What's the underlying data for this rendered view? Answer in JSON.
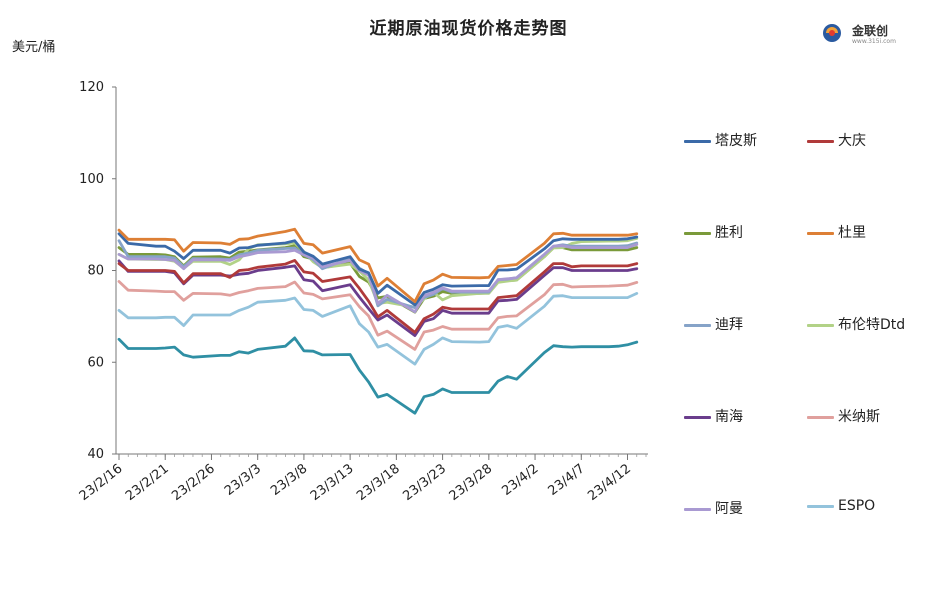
{
  "chart_data": {
    "type": "line",
    "title": "近期原油现货价格走势图",
    "ylabel": "美元/桶",
    "ylim": [
      40,
      120
    ],
    "yticks": [
      40,
      60,
      80,
      100,
      120
    ],
    "xtick_labels": [
      "23/2/16",
      "23/2/21",
      "23/2/26",
      "23/3/3",
      "23/3/8",
      "23/3/13",
      "23/3/18",
      "23/3/23",
      "23/3/28",
      "23/4/2",
      "23/4/7",
      "23/4/12"
    ],
    "x": [
      "2023-02-16",
      "2023-02-17",
      "2023-02-20",
      "2023-02-21",
      "2023-02-22",
      "2023-02-23",
      "2023-02-24",
      "2023-02-27",
      "2023-02-28",
      "2023-03-01",
      "2023-03-02",
      "2023-03-03",
      "2023-03-06",
      "2023-03-07",
      "2023-03-08",
      "2023-03-09",
      "2023-03-10",
      "2023-03-13",
      "2023-03-14",
      "2023-03-15",
      "2023-03-16",
      "2023-03-17",
      "2023-03-20",
      "2023-03-21",
      "2023-03-22",
      "2023-03-23",
      "2023-03-24",
      "2023-03-27",
      "2023-03-28",
      "2023-03-29",
      "2023-03-30",
      "2023-03-31",
      "2023-04-03",
      "2023-04-04",
      "2023-04-05",
      "2023-04-06",
      "2023-04-07",
      "2023-04-10",
      "2023-04-11",
      "2023-04-12",
      "2023-04-13"
    ],
    "series": [
      {
        "name": "塔皮斯",
        "color": "#3b6aa8",
        "values": [
          88.0,
          85.9,
          85.3,
          85.3,
          84.2,
          82.6,
          84.4,
          84.4,
          83.8,
          84.9,
          85.0,
          85.5,
          86.0,
          86.5,
          84.0,
          83.1,
          81.4,
          83.0,
          80.3,
          79.5,
          75.0,
          76.8,
          72.5,
          75.2,
          75.9,
          76.9,
          76.6,
          76.7,
          76.7,
          80.1,
          80.1,
          80.3,
          84.7,
          86.5,
          86.9,
          86.8,
          86.8,
          86.8,
          86.8,
          86.9,
          87.3
        ]
      },
      {
        "name": "大庆",
        "color": "#b03a3a",
        "values": [
          81.5,
          80.0,
          80.0,
          80.0,
          79.8,
          77.3,
          79.3,
          79.3,
          78.5,
          80.0,
          80.2,
          80.7,
          81.4,
          82.2,
          79.7,
          79.4,
          77.6,
          78.6,
          76.1,
          73.3,
          69.9,
          71.3,
          66.5,
          69.5,
          70.5,
          72.0,
          71.6,
          71.6,
          71.6,
          74.1,
          74.3,
          74.5,
          79.7,
          81.5,
          81.5,
          80.8,
          81.0,
          81.0,
          81.0,
          81.0,
          81.5
        ]
      },
      {
        "name": "胜利",
        "color": "#7a9a3a",
        "values": [
          85.0,
          83.5,
          83.5,
          83.4,
          83.0,
          81.0,
          82.9,
          83.0,
          82.7,
          84.0,
          84.2,
          84.5,
          85.0,
          85.4,
          83.0,
          82.5,
          80.6,
          81.6,
          78.7,
          77.5,
          74.0,
          74.4,
          70.9,
          73.9,
          74.4,
          75.4,
          75.0,
          75.0,
          75.1,
          77.7,
          77.8,
          77.9,
          83.0,
          85.0,
          85.0,
          84.5,
          84.5,
          84.5,
          84.5,
          84.5,
          85.0
        ]
      },
      {
        "name": "杜里",
        "color": "#dd7f35",
        "values": [
          88.8,
          86.8,
          86.8,
          86.8,
          86.7,
          84.2,
          86.1,
          86.0,
          85.7,
          86.8,
          86.9,
          87.5,
          88.5,
          89.0,
          85.9,
          85.6,
          83.8,
          85.2,
          82.3,
          81.4,
          76.6,
          78.3,
          73.2,
          77.1,
          77.9,
          79.2,
          78.5,
          78.4,
          78.5,
          80.9,
          81.1,
          81.3,
          85.9,
          88.0,
          88.1,
          87.7,
          87.7,
          87.7,
          87.7,
          87.7,
          88.0
        ]
      },
      {
        "name": "迪拜",
        "color": "#86a3c8",
        "values": [
          86.5,
          83.0,
          83.0,
          83.0,
          82.7,
          80.8,
          82.6,
          82.5,
          82.4,
          83.4,
          83.8,
          84.4,
          84.8,
          84.9,
          83.4,
          82.4,
          80.4,
          82.7,
          80.5,
          79.3,
          72.3,
          73.7,
          71.9,
          74.1,
          74.8,
          76.1,
          75.3,
          75.3,
          75.3,
          78.0,
          78.1,
          78.4,
          83.5,
          85.3,
          85.6,
          85.3,
          85.3,
          85.3,
          85.3,
          85.4,
          86.0
        ]
      },
      {
        "name": "布伦特Dtd",
        "color": "#b2d287",
        "values": [
          83.5,
          82.5,
          82.4,
          82.4,
          82.0,
          80.5,
          82.0,
          82.0,
          81.3,
          82.3,
          84.7,
          85.6,
          85.8,
          86.0,
          84.1,
          81.9,
          80.6,
          81.4,
          79.9,
          77.9,
          72.8,
          73.1,
          72.0,
          73.8,
          75.3,
          73.6,
          74.5,
          75.0,
          75.0,
          77.4,
          77.7,
          77.9,
          83.0,
          84.9,
          85.0,
          85.9,
          86.3,
          86.4,
          86.4,
          86.5,
          87.0
        ]
      },
      {
        "name": "南海",
        "color": "#6a3d8c",
        "values": [
          82.1,
          79.8,
          79.8,
          79.8,
          79.5,
          77.1,
          79.0,
          79.0,
          78.8,
          79.2,
          79.4,
          80.0,
          80.7,
          81.0,
          78.0,
          77.7,
          75.6,
          76.9,
          74.2,
          71.7,
          69.2,
          70.3,
          65.8,
          68.9,
          69.5,
          71.3,
          70.7,
          70.7,
          70.7,
          73.4,
          73.5,
          73.7,
          78.9,
          80.6,
          80.6,
          80.0,
          80.0,
          80.0,
          80.0,
          80.0,
          80.4
        ]
      },
      {
        "name": "米纳斯",
        "color": "#e0a09d",
        "values": [
          77.6,
          75.7,
          75.5,
          75.4,
          75.4,
          73.5,
          75.0,
          74.9,
          74.6,
          75.2,
          75.6,
          76.1,
          76.5,
          77.5,
          75.1,
          74.8,
          73.8,
          74.7,
          72.1,
          70.1,
          65.9,
          66.8,
          62.8,
          66.6,
          67.0,
          67.8,
          67.2,
          67.2,
          67.2,
          69.7,
          70.0,
          70.1,
          74.7,
          76.9,
          77.0,
          76.4,
          76.5,
          76.6,
          76.7,
          76.8,
          77.4
        ]
      },
      {
        "name": "阿曼",
        "color": "#a99ad2",
        "values": [
          83.5,
          82.5,
          82.5,
          82.4,
          82.2,
          80.4,
          82.3,
          82.3,
          82.2,
          83.0,
          83.4,
          83.9,
          84.1,
          84.4,
          83.4,
          82.7,
          80.8,
          82.2,
          80.0,
          79.0,
          72.8,
          74.6,
          71.0,
          74.5,
          75.2,
          76.2,
          75.5,
          75.5,
          75.5,
          78.0,
          78.2,
          78.4,
          83.5,
          85.3,
          85.4,
          85.0,
          85.0,
          85.0,
          85.0,
          85.0,
          85.7
        ]
      },
      {
        "name": "ESPO",
        "color": "#93c3dc",
        "values": [
          71.3,
          69.7,
          69.7,
          69.8,
          69.8,
          68.0,
          70.3,
          70.3,
          70.3,
          71.3,
          72.0,
          73.1,
          73.5,
          74.0,
          71.5,
          71.3,
          70.0,
          72.3,
          68.4,
          66.6,
          63.3,
          63.9,
          59.6,
          62.8,
          63.9,
          65.3,
          64.5,
          64.4,
          64.5,
          67.6,
          68.0,
          67.4,
          72.2,
          74.4,
          74.5,
          74.1,
          74.1,
          74.1,
          74.1,
          74.1,
          75.0
        ]
      },
      {
        "name": "",
        "color": "#2f8fa4",
        "values": [
          65.0,
          63.0,
          63.0,
          63.1,
          63.3,
          61.6,
          61.1,
          61.5,
          61.5,
          62.3,
          62.0,
          62.8,
          63.5,
          65.3,
          62.5,
          62.4,
          61.6,
          61.7,
          58.3,
          55.7,
          52.4,
          53.0,
          48.9,
          52.5,
          53.0,
          54.2,
          53.4,
          53.4,
          53.4,
          55.9,
          56.9,
          56.3,
          62.1,
          63.6,
          63.4,
          63.3,
          63.4,
          63.4,
          63.5,
          63.8,
          64.4
        ]
      }
    ],
    "legend": {
      "placement": "right",
      "columns": 2
    }
  },
  "logo": {
    "text": "金联创",
    "subtext": "www.315i.com"
  }
}
